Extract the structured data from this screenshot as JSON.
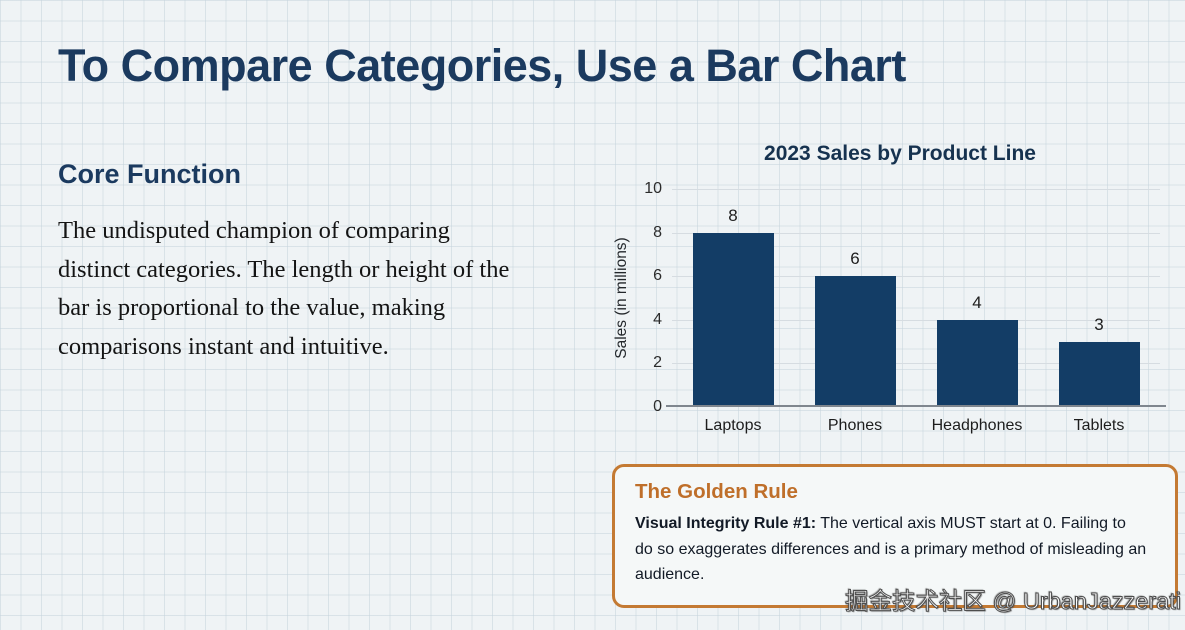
{
  "page": {
    "title": "To Compare Categories, Use a Bar Chart"
  },
  "left_panel": {
    "heading": "Core Function",
    "body": "The undisputed champion of comparing distinct categories. The length or height of the bar is proportional to the value, making comparisons instant and intuitive."
  },
  "chart_data": {
    "type": "bar",
    "title": "2023 Sales by Product Line",
    "categories": [
      "Laptops",
      "Phones",
      "Headphones",
      "Tablets"
    ],
    "values": [
      8,
      6,
      4,
      3
    ],
    "xlabel": "",
    "ylabel": "Sales (in millions)",
    "yticks": [
      0,
      2,
      4,
      6,
      8,
      10
    ],
    "ylim": [
      0,
      10
    ],
    "grid": true,
    "legend": "none",
    "bar_color": "#133d66"
  },
  "golden_rule": {
    "heading": "The Golden Rule",
    "lead": "Visual Integrity Rule #1:",
    "body": " The vertical axis MUST start at 0. Failing to do so exaggerates differences and is a primary method of misleading an audience."
  },
  "watermark": "掘金技术社区 @ UrbanJazzerati",
  "colors": {
    "background": "#eff3f5",
    "grid_paper_line": "#c6d4dd",
    "heading_navy": "#1b3a5f",
    "bar_navy": "#133d66",
    "chart_gridline": "#d6dce1",
    "axis_line": "#7f868e",
    "accent_orange_border": "#c47a33",
    "accent_orange_text": "#bf6f2a",
    "body_text": "#141414"
  }
}
